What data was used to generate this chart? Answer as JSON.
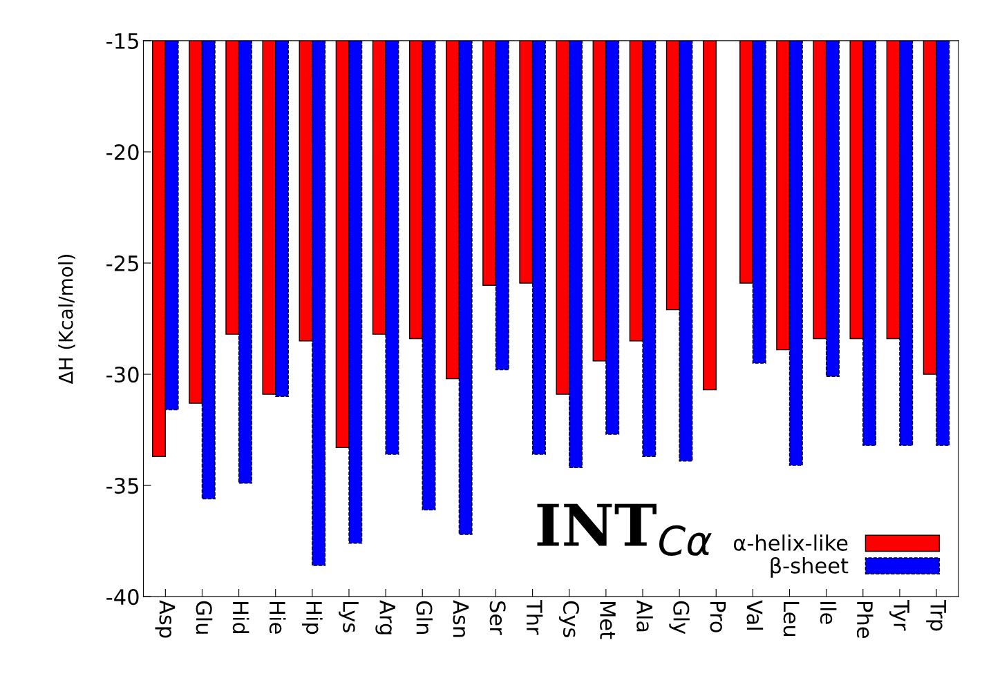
{
  "chart_data": {
    "type": "bar",
    "ylabel": "ΔH (Kcal/mol)",
    "categories": [
      "Asp",
      "Glu",
      "Hid",
      "Hie",
      "Hip",
      "Lys",
      "Arg",
      "Gln",
      "Asn",
      "Ser",
      "Thr",
      "Cys",
      "Met",
      "Ala",
      "Gly",
      "Pro",
      "Val",
      "Leu",
      "Ile",
      "Phe",
      "Tyr",
      "Trp"
    ],
    "series": [
      {
        "name": "α-helix-like",
        "color": "#ff0000",
        "line_style": "solid",
        "values": [
          -33.7,
          -31.3,
          -28.2,
          -30.9,
          -28.5,
          -33.3,
          -28.2,
          -28.4,
          -30.2,
          -26.0,
          -25.9,
          -30.9,
          -29.4,
          -28.5,
          -27.1,
          -30.7,
          -25.9,
          -28.9,
          -28.4,
          -28.4,
          -28.4,
          -30.0
        ]
      },
      {
        "name": "β-sheet",
        "color": "#0000ff",
        "line_style": "dashed",
        "values": [
          -31.6,
          -35.6,
          -34.9,
          -31.0,
          -38.6,
          -37.6,
          -33.6,
          -36.1,
          -37.2,
          -29.8,
          -33.6,
          -34.2,
          -32.7,
          -33.7,
          -33.9,
          null,
          -29.5,
          -34.1,
          -30.1,
          -33.2,
          -33.2,
          -33.2
        ]
      }
    ],
    "ylim": [
      -40,
      -15
    ],
    "yticks": [
      -40,
      -35,
      -30,
      -25,
      -20,
      -15
    ],
    "annotations": [
      "INT$_{Cα}$"
    ],
    "legend": "bottom right",
    "grid": false
  }
}
